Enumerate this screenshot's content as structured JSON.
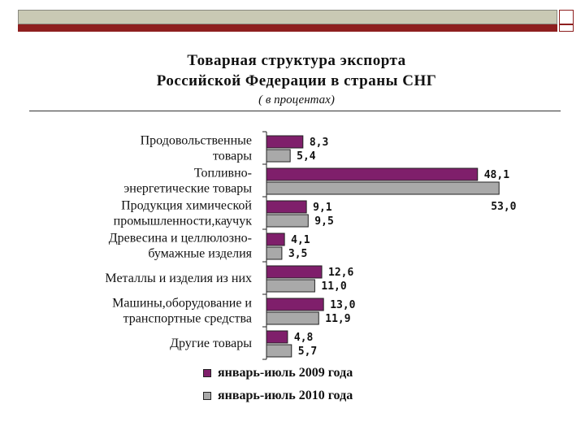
{
  "title_line1": "Товарная структура экспорта",
  "title_line2": "Российской Федерации в страны СНГ",
  "subtitle": "( в процентах)",
  "colors": {
    "series_2009": "#7f1f6b",
    "series_2010": "#a9a9a9"
  },
  "chart_data": {
    "type": "bar",
    "orientation": "horizontal",
    "categories": [
      [
        "Продовольственные",
        "товары"
      ],
      [
        "Топливно-",
        "энергетические товары"
      ],
      [
        "Продукция химической",
        "промышленности,каучук"
      ],
      [
        "Древесина и целлюлозно-",
        "бумажные изделия"
      ],
      [
        "Металлы и изделия из них"
      ],
      [
        "Машины,оборудование и",
        "транспортные средства"
      ],
      [
        "Другие товары"
      ]
    ],
    "series": [
      {
        "name": "январь-июль 2009 года",
        "values": [
          8.3,
          48.1,
          9.1,
          4.1,
          12.6,
          13.0,
          4.8
        ],
        "labels": [
          "8,3",
          "48,1",
          "9,1",
          "4,1",
          "12,6",
          "13,0",
          "4,8"
        ]
      },
      {
        "name": "январь-июль 2010 года",
        "values": [
          5.4,
          53.0,
          9.5,
          3.5,
          11.0,
          11.9,
          5.7
        ],
        "labels": [
          "5,4",
          "53,0",
          "9,5",
          "3,5",
          "11,0",
          "11,9",
          "5,7"
        ]
      }
    ],
    "xlim": [
      0,
      55
    ],
    "legend_position": "bottom"
  }
}
